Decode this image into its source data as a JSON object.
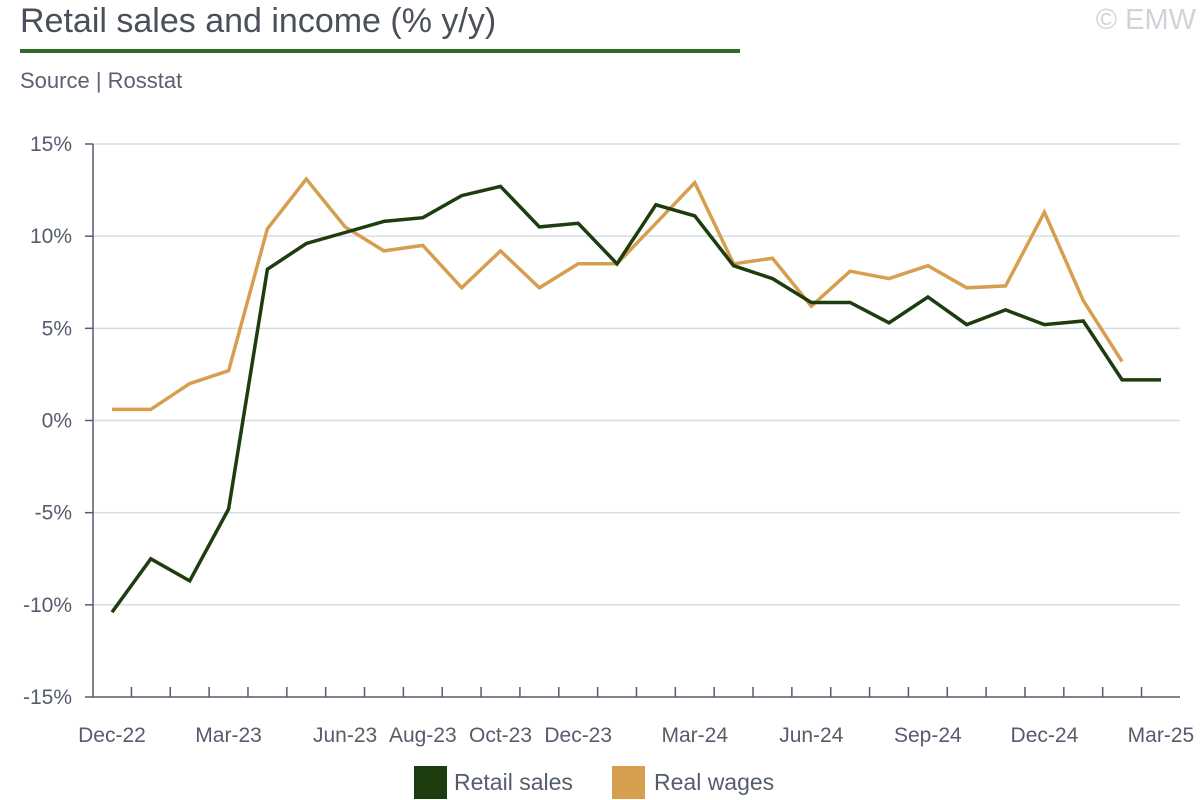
{
  "header": {
    "title": "Retail sales and income (% y/y)",
    "source": "Source | Rosstat",
    "copyright": "© EMW"
  },
  "colors": {
    "retail": "#1d3d0f",
    "wages": "#d69f4f",
    "grid": "#d4dde6",
    "axis": "#555c6b",
    "title_rule": "#2f6a2a"
  },
  "legend": [
    {
      "label": "Retail sales",
      "color": "#1d3d0f"
    },
    {
      "label": "Real wages",
      "color": "#d69f4f"
    }
  ],
  "chart_data": {
    "type": "line",
    "title": "Retail sales and income (% y/y)",
    "xlabel": "",
    "ylabel": "",
    "ylim": [
      -15,
      15
    ],
    "yticks": [
      15,
      10,
      5,
      0,
      -5,
      -10,
      -15
    ],
    "ytick_labels": [
      "15%",
      "10%",
      "5%",
      "0%",
      "-5%",
      "-10%",
      "-15%"
    ],
    "grid": true,
    "legend_position": "bottom",
    "categories": [
      "Dec-22",
      "Jan-23",
      "Feb-23",
      "Mar-23",
      "Apr-23",
      "May-23",
      "Jun-23",
      "Jul-23",
      "Aug-23",
      "Sep-23",
      "Oct-23",
      "Nov-23",
      "Dec-23",
      "Jan-24",
      "Feb-24",
      "Mar-24",
      "Apr-24",
      "May-24",
      "Jun-24",
      "Jul-24",
      "Aug-24",
      "Sep-24",
      "Oct-24",
      "Nov-24",
      "Dec-24",
      "Jan-25",
      "Feb-25",
      "Mar-25"
    ],
    "xtick_labels": [
      {
        "index": 0,
        "label": "Dec-22"
      },
      {
        "index": 3,
        "label": "Mar-23"
      },
      {
        "index": 6,
        "label": "Jun-23"
      },
      {
        "index": 8,
        "label": "Aug-23"
      },
      {
        "index": 10,
        "label": "Oct-23"
      },
      {
        "index": 12,
        "label": "Dec-23"
      },
      {
        "index": 15,
        "label": "Mar-24"
      },
      {
        "index": 18,
        "label": "Jun-24"
      },
      {
        "index": 21,
        "label": "Sep-24"
      },
      {
        "index": 24,
        "label": "Dec-24"
      },
      {
        "index": 27,
        "label": "Mar-25"
      }
    ],
    "series": [
      {
        "name": "Retail sales",
        "values": [
          -10.4,
          -7.5,
          -8.7,
          -4.8,
          8.2,
          9.6,
          10.2,
          10.8,
          11.0,
          12.2,
          12.7,
          10.5,
          10.7,
          8.5,
          11.7,
          11.1,
          8.4,
          7.7,
          6.4,
          6.4,
          5.3,
          6.7,
          5.2,
          6.0,
          5.2,
          5.4,
          2.2,
          2.2
        ]
      },
      {
        "name": "Real wages",
        "values": [
          0.6,
          0.6,
          2.0,
          2.7,
          10.4,
          13.1,
          10.5,
          9.2,
          9.5,
          7.2,
          9.2,
          7.2,
          8.5,
          8.5,
          10.7,
          12.9,
          8.5,
          8.8,
          6.2,
          8.1,
          7.7,
          8.4,
          7.2,
          7.3,
          11.3,
          6.5,
          3.2,
          null
        ]
      }
    ]
  }
}
